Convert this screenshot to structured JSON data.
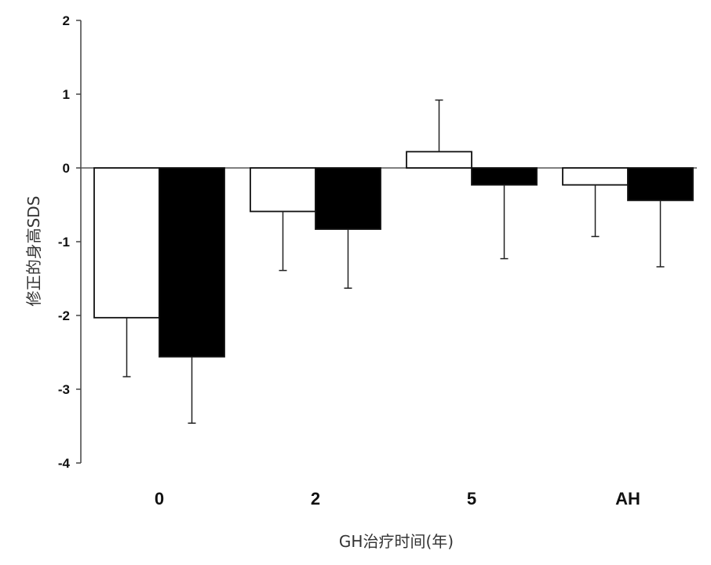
{
  "chart_data": {
    "type": "bar",
    "xlabel": "GH治疗时间(年)",
    "ylabel": "修正的身高SDS",
    "ylim": [
      -4,
      2
    ],
    "yticks": [
      "2",
      "1",
      "0",
      "-1",
      "-2",
      "-3",
      "-4"
    ],
    "categories": [
      "0",
      "2",
      "5",
      "AH"
    ],
    "grid": false,
    "legend": "none",
    "series": [
      {
        "color": "#ffffff",
        "values": [
          -2.03,
          -0.59,
          0.22,
          -0.23
        ],
        "error": [
          0.8,
          0.8,
          0.7,
          0.7
        ]
      },
      {
        "color": "#000000",
        "values": [
          -2.56,
          -0.83,
          -0.23,
          -0.44
        ],
        "error": [
          0.9,
          0.8,
          1.0,
          0.9
        ]
      }
    ]
  }
}
